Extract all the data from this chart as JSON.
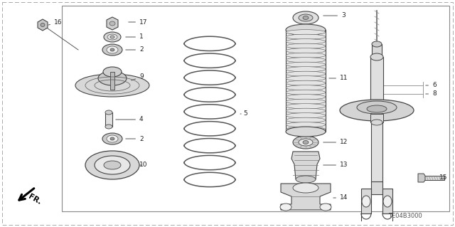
{
  "bg_color": "#ffffff",
  "line_color": "#444444",
  "text_color": "#222222",
  "diagram_code": "TE04B3000",
  "inner_border": [
    0.135,
    0.055,
    0.895,
    0.955
  ],
  "dashed_border_top": true
}
